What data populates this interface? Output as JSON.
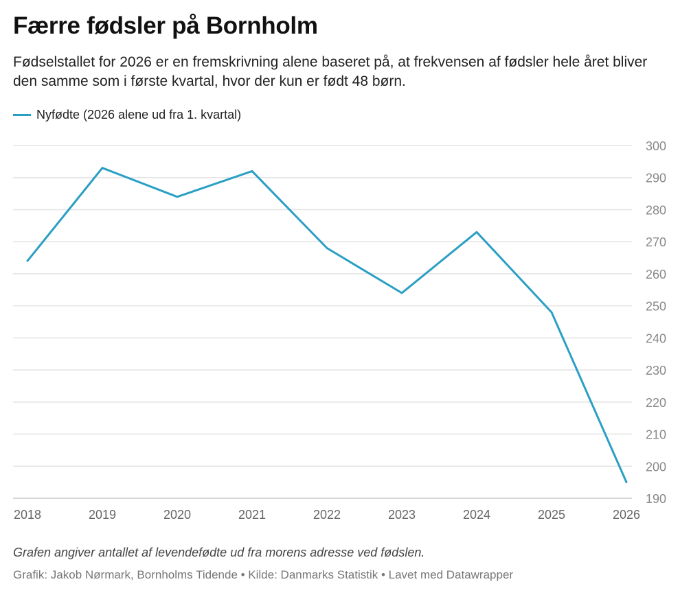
{
  "header": {
    "title": "Færre fødsler på Bornholm",
    "subtitle": "Fødselstallet for 2026 er en fremskrivning alene baseret på, at frekvensen af fødsler hele året bliver den samme som i første kvartal, hvor der kun er født 48 børn."
  },
  "legend": {
    "label": "Nyfødte (2026 alene ud fra 1. kvartal)",
    "color": "#2a9fc4"
  },
  "chart_data": {
    "type": "line",
    "x": [
      "2018",
      "2019",
      "2020",
      "2021",
      "2022",
      "2023",
      "2024",
      "2025",
      "2026"
    ],
    "series": [
      {
        "name": "Nyfødte (2026 alene ud fra 1. kvartal)",
        "values": [
          264,
          293,
          284,
          292,
          268,
          254,
          273,
          248,
          195
        ],
        "color": "#2a9fc4"
      }
    ],
    "ylim": [
      190,
      300
    ],
    "yticks": [
      190,
      200,
      210,
      220,
      230,
      240,
      250,
      260,
      270,
      280,
      290,
      300
    ],
    "grid": true,
    "y_axis_side": "right",
    "legend_position": "top-left"
  },
  "footer": {
    "note": "Grafen angiver antallet af levendefødte ud fra morens adresse ved fødslen.",
    "credit": "Grafik: Jakob Nørmark, Bornholms Tidende • Kilde: Danmarks Statistik • Lavet med Datawrapper"
  }
}
